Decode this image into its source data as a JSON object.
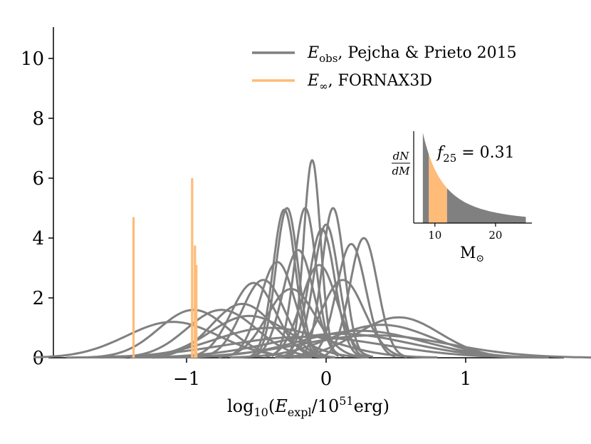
{
  "chart_data": [
    {
      "type": "line",
      "xlabel": "log10(Eexpl/10^51erg)",
      "ylabel": "",
      "xlim": [
        -1.9,
        1.7
      ],
      "ylim": [
        0,
        11
      ],
      "xticks": [
        -1,
        0,
        1
      ],
      "yticks": [
        0,
        2,
        4,
        6,
        8,
        10
      ],
      "grid": false,
      "legend": {
        "position": "top-right",
        "entries": [
          {
            "name": "Eobs, Pejcha & Prieto 2015",
            "color": "#808080"
          },
          {
            "name": "E∞, FORNAX3D",
            "color": "#ffbb78"
          }
        ]
      },
      "series_gaussian": {
        "name": "Eobs, Pejcha & Prieto 2015",
        "color": "#808080",
        "curves": [
          {
            "mu": -0.1,
            "peak": 6.6
          },
          {
            "mu": -0.28,
            "peak": 5.0
          },
          {
            "mu": -0.3,
            "peak": 4.95
          },
          {
            "mu": -0.15,
            "peak": 5.0
          },
          {
            "mu": 0.05,
            "peak": 5.0
          },
          {
            "mu": 0.0,
            "peak": 4.45
          },
          {
            "mu": -0.03,
            "peak": 4.3
          },
          {
            "mu": 0.27,
            "peak": 4.0
          },
          {
            "mu": 0.18,
            "peak": 3.8
          },
          {
            "mu": -0.2,
            "peak": 3.6
          },
          {
            "mu": -0.35,
            "peak": 3.2
          },
          {
            "mu": -0.05,
            "peak": 3.1
          },
          {
            "mu": -0.45,
            "peak": 2.6
          },
          {
            "mu": -0.52,
            "peak": 2.5
          },
          {
            "mu": 0.12,
            "peak": 2.6
          },
          {
            "mu": -0.25,
            "peak": 2.3
          },
          {
            "mu": -0.6,
            "peak": 1.8
          },
          {
            "mu": -0.75,
            "peak": 1.6
          },
          {
            "mu": -0.95,
            "peak": 1.6
          },
          {
            "mu": -1.1,
            "peak": 1.2
          },
          {
            "mu": -0.55,
            "peak": 1.4
          },
          {
            "mu": 0.52,
            "peak": 1.35
          },
          {
            "mu": 0.4,
            "peak": 1.1
          },
          {
            "mu": 0.25,
            "peak": 0.9
          },
          {
            "mu": -0.4,
            "peak": 1.0
          },
          {
            "mu": 0.1,
            "peak": 0.8
          },
          {
            "mu": -0.15,
            "peak": 0.7
          },
          {
            "mu": 0.35,
            "peak": 0.75
          }
        ]
      },
      "series_spikes": {
        "name": "E∞, FORNAX3D",
        "color": "#ffbb78",
        "x": [
          -1.38,
          -0.96,
          -0.94,
          -0.93
        ],
        "y": [
          4.7,
          6.0,
          3.75,
          3.1
        ]
      }
    },
    {
      "type": "area",
      "xlabel": "M⊙",
      "ylabel": "dN/dM",
      "xticks": [
        10,
        20
      ],
      "xlim": [
        6.5,
        26
      ],
      "annotation": "f25 = 0.31",
      "colors": {
        "gray": "#808080",
        "orange": "#ffbb78"
      },
      "highlight_range": [
        9,
        12
      ],
      "curve_range": [
        8,
        25
      ]
    }
  ],
  "labels": {
    "xlabel_parts": {
      "prefix": "log",
      "sub10": "10",
      "open": "(",
      "E": "E",
      "sub_expl": "expl",
      "slash_ten": "/10",
      "sup51": "51",
      "erg": "erg)"
    },
    "legend1_parts": {
      "E": "E",
      "sub": "obs",
      "rest": ", Pejcha & Prieto 2015"
    },
    "legend2_parts": {
      "E": "E",
      "sub": "∞",
      "rest": ", FORNAX3D"
    },
    "inset_ylabel": {
      "num": "dN",
      "den": "dM"
    },
    "inset_xlabel": {
      "M": "M",
      "sub": "⊙"
    },
    "inset_annotation": {
      "f": "f",
      "sub": "25",
      "rest": " = 0.31"
    }
  }
}
